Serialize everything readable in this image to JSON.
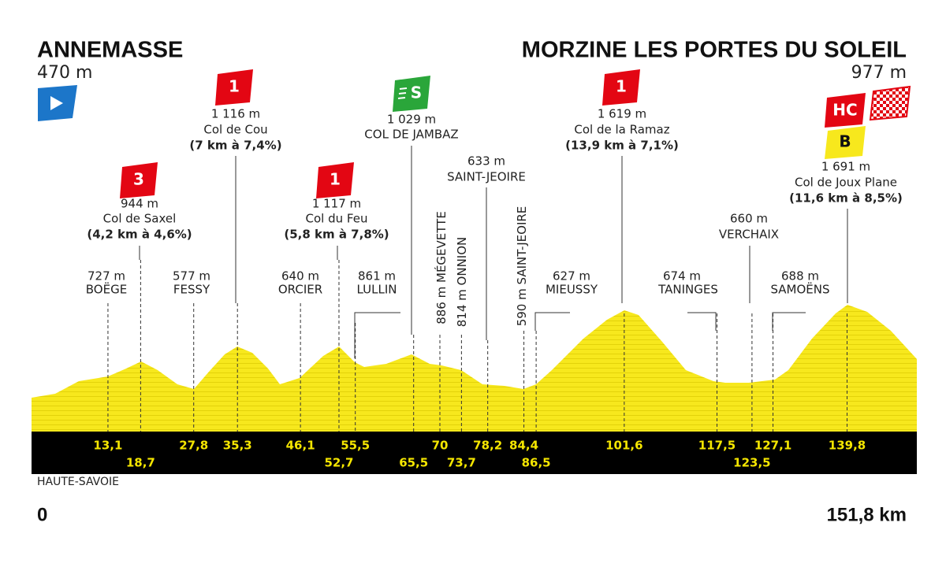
{
  "start": {
    "name": "ANNEMASSE",
    "altitude": "470 m",
    "km": "0",
    "region": "HAUTE-SAVOIE"
  },
  "finish": {
    "name": "MORZINE LES PORTES DU SOLEIL",
    "altitude": "977 m",
    "km": "151,8 km",
    "climb_category": "HC",
    "bonus": "B"
  },
  "climbs": [
    {
      "category": "3",
      "altitude": "944 m",
      "name": "Col de Saxel",
      "detail": "(4,2 km à 4,6%)"
    },
    {
      "category": "1",
      "altitude": "1 116 m",
      "name": "Col de Cou",
      "detail": "(7 km à 7,4%)"
    },
    {
      "category": "1",
      "altitude": "1 117 m",
      "name": "Col du Feu",
      "detail": "(5,8 km à 7,8%)"
    },
    {
      "category": "1",
      "altitude": "1 619 m",
      "name": "Col de la Ramaz",
      "detail": "(13,9 km à 7,1%)"
    },
    {
      "category": "HC",
      "altitude": "1 691 m",
      "name": "Col de Joux Plane",
      "detail": "(11,6 km à 8,5%)"
    }
  ],
  "sprint": {
    "category": "S",
    "altitude": "1 029 m",
    "name": "COL DE JAMBAZ"
  },
  "places": [
    {
      "altitude": "727 m",
      "name": "BOËGE"
    },
    {
      "altitude": "577 m",
      "name": "FESSY"
    },
    {
      "altitude": "640 m",
      "name": "ORCIER"
    },
    {
      "altitude": "861 m",
      "name": "LULLIN"
    },
    {
      "altitude": "886 m",
      "name": "MÉGEVETTE"
    },
    {
      "altitude": "814 m",
      "name": "ONNION"
    },
    {
      "altitude": "633 m",
      "name": "SAINT-JEOIRE"
    },
    {
      "altitude": "590 m",
      "name": "SAINT-JEOIRE"
    },
    {
      "altitude": "627 m",
      "name": "MIEUSSY"
    },
    {
      "altitude": "674 m",
      "name": "TANINGES"
    },
    {
      "altitude": "660 m",
      "name": "VERCHAIX"
    },
    {
      "altitude": "688 m",
      "name": "SAMOËNS"
    }
  ],
  "km_marks": [
    "13,1",
    "18,7",
    "27,8",
    "35,3",
    "46,1",
    "52,7",
    "55,5",
    "65,5",
    "70",
    "73,7",
    "78,2",
    "84,4",
    "86,5",
    "101,6",
    "117,5",
    "123,5",
    "127,1",
    "139,8"
  ]
}
